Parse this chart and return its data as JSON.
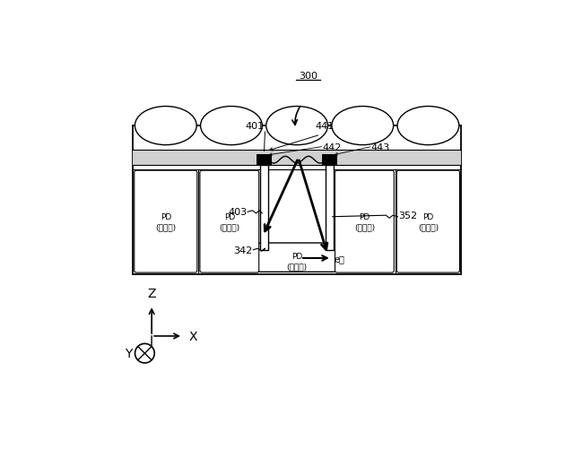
{
  "bg_color": "#ffffff",
  "fig_width": 6.4,
  "fig_height": 5.02,
  "gray_fill": "#d0d0d0",
  "black": "#000000",
  "white": "#ffffff",
  "label_300": "300",
  "label_401": "401",
  "label_441": "441",
  "label_442": "442",
  "label_443": "443",
  "label_403": "403",
  "label_352": "352",
  "label_342": "342",
  "label_pd_vis": "PD\n(可視光)",
  "label_pd_ir": "PD\n(赤外光)",
  "label_eminus": "e－",
  "label_Z": "Z",
  "label_X": "X",
  "label_Y": "Y"
}
